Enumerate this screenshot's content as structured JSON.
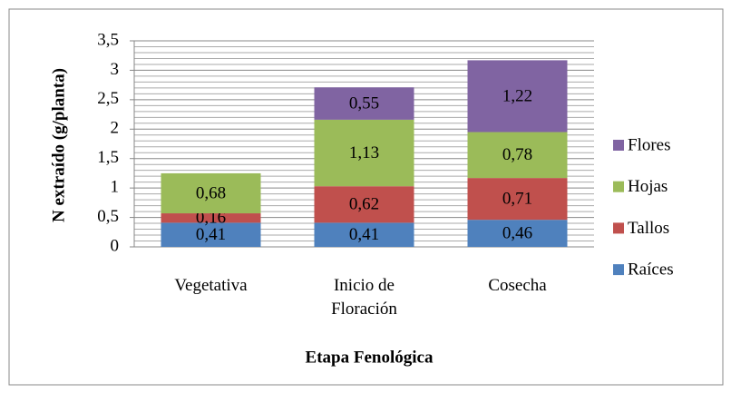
{
  "chart_data": {
    "type": "stacked_bar",
    "categories": [
      "Vegetativa",
      "Inicio de Floración",
      "Cosecha"
    ],
    "series": [
      {
        "name": "Raíces",
        "color": "#4f81bd",
        "values": [
          0.41,
          0.41,
          0.46
        ],
        "value_labels": [
          "0,41",
          "0,41",
          "0,46"
        ]
      },
      {
        "name": "Tallos",
        "color": "#c0504d",
        "values": [
          0.16,
          0.62,
          0.71
        ],
        "value_labels": [
          "0,16",
          "0,62",
          "0,71"
        ]
      },
      {
        "name": "Hojas",
        "color": "#9bbb59",
        "values": [
          0.68,
          1.13,
          0.78
        ],
        "value_labels": [
          "0,68",
          "1,13",
          "0,78"
        ]
      },
      {
        "name": "Flores",
        "color": "#8064a2",
        "values": [
          null,
          0.55,
          1.22
        ],
        "value_labels": [
          null,
          "0,55",
          "1,22"
        ]
      }
    ],
    "x_label": "Etapa Fenológica",
    "y_label": "N extraído (g/planta)",
    "ylim": [
      0,
      3.5
    ],
    "yticks": [
      0,
      {
        "value": 0.5,
        "label": "0,5"
      },
      1,
      {
        "value": 1.5,
        "label": "1,5"
      },
      2,
      {
        "value": 2.5,
        "label": "2,5"
      },
      3,
      {
        "value": 3.5,
        "label": "3,5"
      }
    ],
    "grid": true,
    "legend": "right"
  }
}
